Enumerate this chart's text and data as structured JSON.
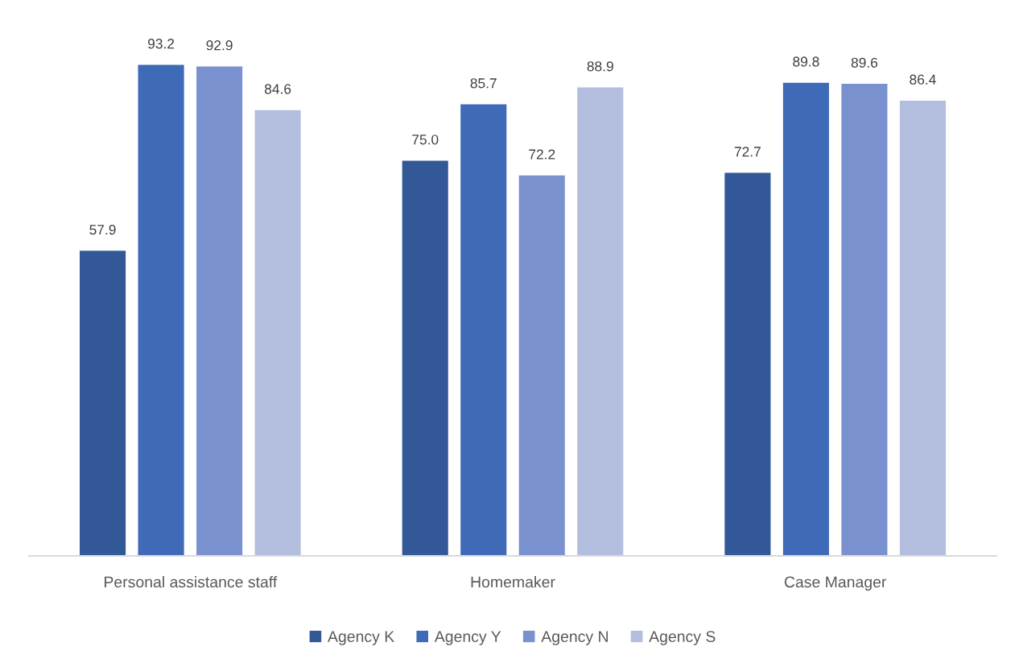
{
  "chart_data": {
    "type": "bar",
    "categories": [
      "Personal assistance staff",
      "Homemaker",
      "Case Manager"
    ],
    "series": [
      {
        "name": "Agency K",
        "color": "#325897",
        "values": [
          57.9,
          75.0,
          72.7
        ],
        "value_labels": [
          "57.9",
          "75.0",
          "72.7"
        ]
      },
      {
        "name": "Agency Y",
        "color": "#3f6ab7",
        "values": [
          93.2,
          85.7,
          89.8
        ],
        "value_labels": [
          "93.2",
          "85.7",
          "89.8"
        ]
      },
      {
        "name": "Agency N",
        "color": "#7a91cf",
        "values": [
          92.9,
          72.2,
          89.6
        ],
        "value_labels": [
          "92.9",
          "72.2",
          "89.6"
        ]
      },
      {
        "name": "Agency S",
        "color": "#b3bedf",
        "values": [
          84.6,
          88.9,
          86.4
        ],
        "value_labels": [
          "84.6",
          "88.9",
          "86.4"
        ]
      }
    ],
    "legend": "bottom",
    "tick_labels": "x"
  }
}
